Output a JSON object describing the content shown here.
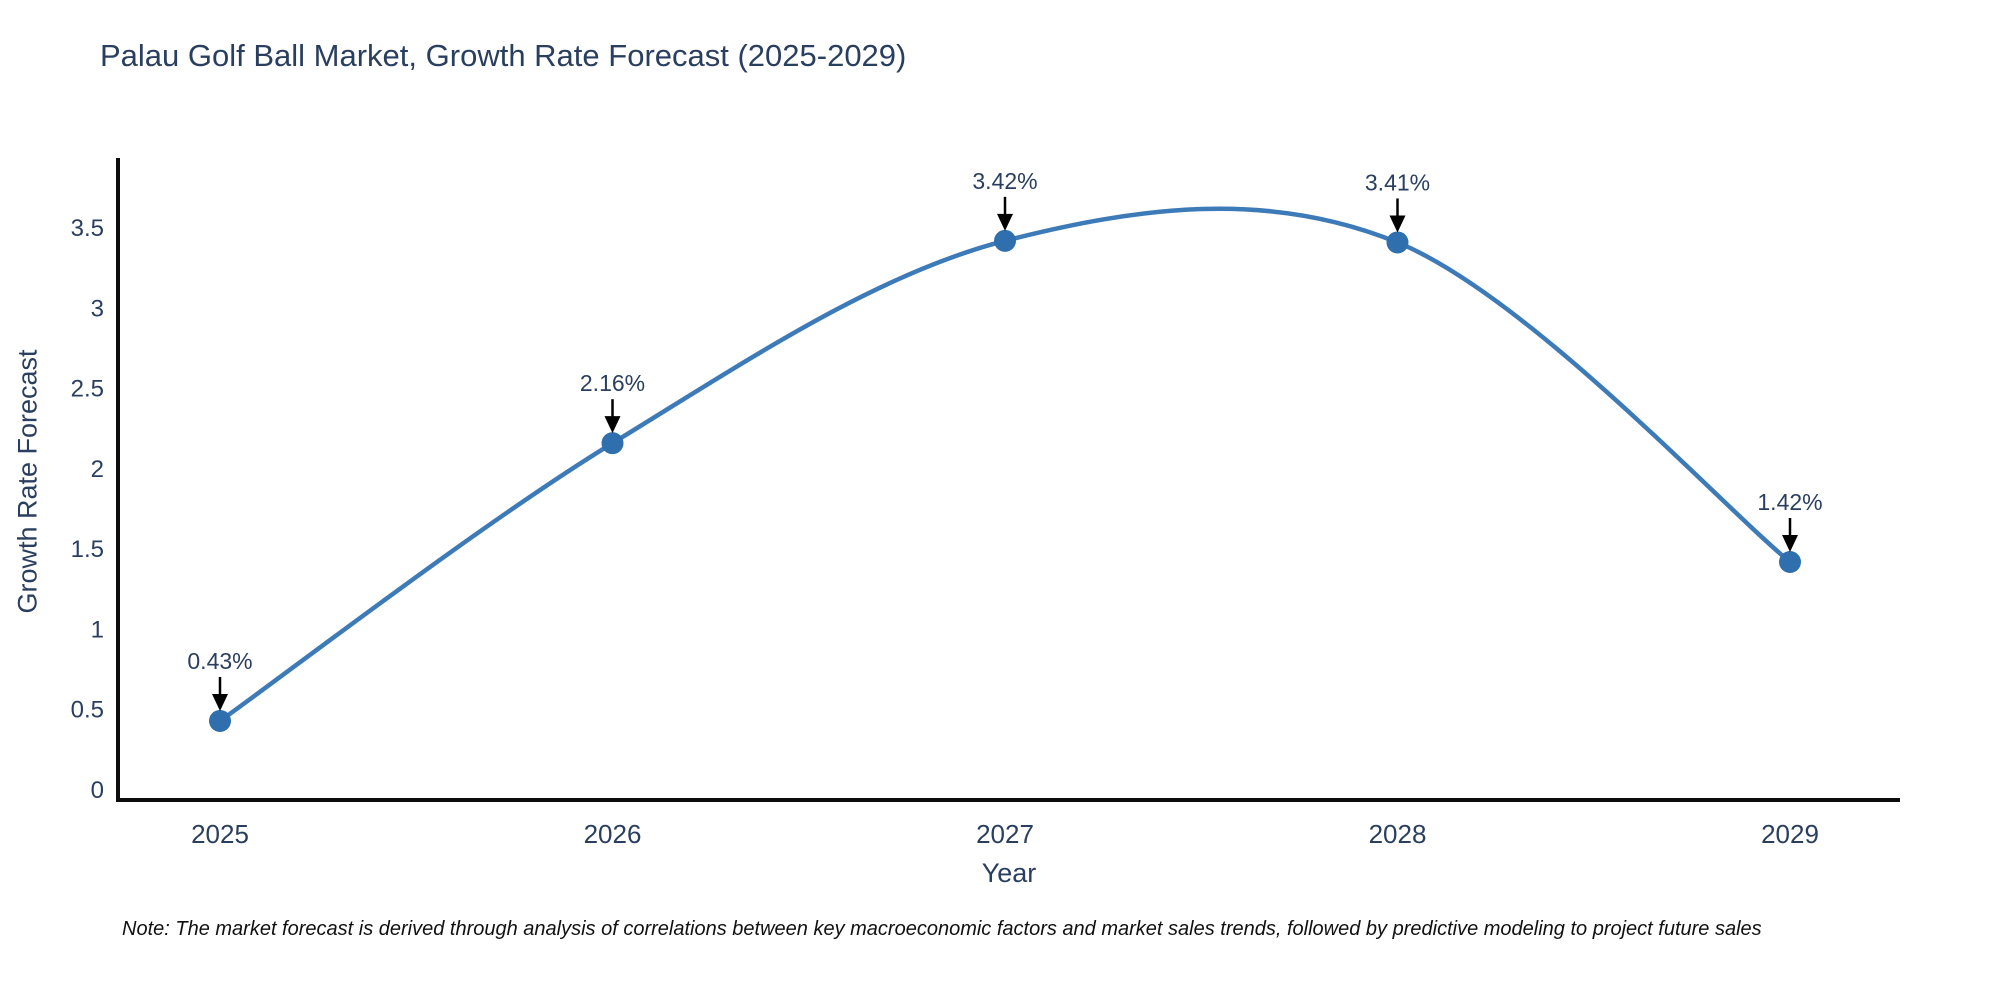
{
  "title": "Palau Golf Ball Market, Growth Rate Forecast (2025-2029)",
  "footnote": "Note: The market forecast is derived through analysis of correlations between key macroeconomic factors and market sales trends, followed by predictive modeling to project future sales",
  "chart_data": {
    "type": "line",
    "line_shape": "spline",
    "title": "Palau Golf Ball Market, Growth Rate Forecast (2025-2029)",
    "xlabel": "Year",
    "ylabel": "Growth Rate Forecast",
    "categories": [
      "2025",
      "2026",
      "2027",
      "2028",
      "2029"
    ],
    "series": [
      {
        "name": "Growth Rate Forecast",
        "values": [
          0.43,
          2.16,
          3.42,
          3.41,
          1.42
        ]
      }
    ],
    "point_labels": [
      "0.43%",
      "2.16%",
      "3.42%",
      "3.41%",
      "1.42%"
    ],
    "yticks": [
      0,
      0.5,
      1,
      1.5,
      2,
      2.5,
      3,
      3.5
    ],
    "ylim": [
      -0.06,
      3.92
    ],
    "grid": false,
    "legend": "none",
    "colors": {
      "line": "#3d7ab8",
      "marker": "#2f6fae",
      "axis_line": "#0d0d0d",
      "text": "#2a3f5f",
      "annotation_text": "#2a3f5f",
      "annotation_arrow": "#000000",
      "background": "#ffffff"
    }
  }
}
